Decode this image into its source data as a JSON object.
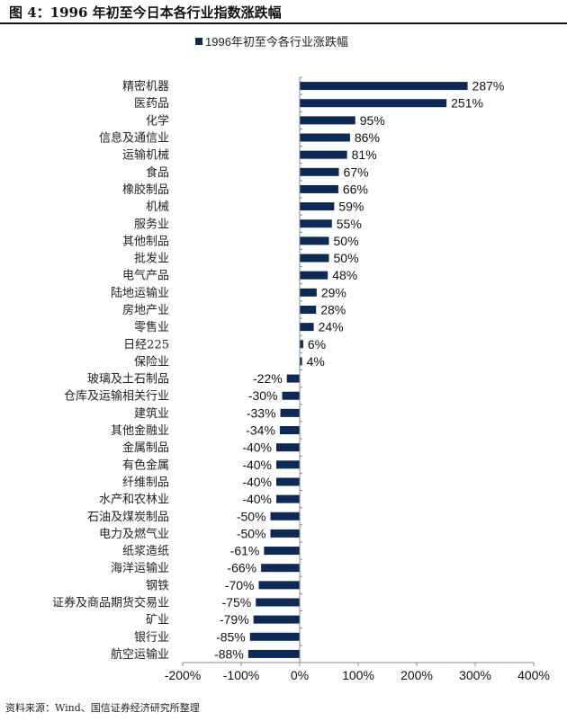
{
  "figure_title": "图 4：1996 年初至今日本各行业指数涨跌幅",
  "source": "资料来源：Wind、国信证券经济研究所整理",
  "colors": {
    "bar": "#0d2a57"
  },
  "chart_data": {
    "type": "bar",
    "orientation": "horizontal",
    "title": "",
    "legend": [
      {
        "name": "1996年初至今各行业涨跌幅",
        "position": "top"
      }
    ],
    "categories": [
      "精密机器",
      "医药品",
      "化学",
      "信息及通信业",
      "运输机械",
      "食品",
      "橡胶制品",
      "机械",
      "服务业",
      "其他制品",
      "批发业",
      "电气产品",
      "陆地运输业",
      "房地产业",
      "零售业",
      "日经225",
      "保险业",
      "玻璃及土石制品",
      "仓库及运输相关行业",
      "建筑业",
      "其他金融业",
      "金属制品",
      "有色金属",
      "纤维制品",
      "水产和农林业",
      "石油及煤炭制品",
      "电力及燃气业",
      "纸浆造纸",
      "海洋运输业",
      "钢铁",
      "证券及商品期货交易业",
      "矿业",
      "银行业",
      "航空运输业"
    ],
    "series": [
      {
        "name": "1996年初至今各行业涨跌幅",
        "values": [
          287,
          251,
          95,
          86,
          81,
          67,
          66,
          59,
          55,
          50,
          50,
          48,
          29,
          28,
          24,
          6,
          4,
          -22,
          -30,
          -33,
          -34,
          -40,
          -40,
          -40,
          -40,
          -50,
          -50,
          -61,
          -66,
          -70,
          -75,
          -79,
          -85,
          -88
        ]
      }
    ],
    "data_labels": [
      "287%",
      "251%",
      "95%",
      "86%",
      "81%",
      "67%",
      "66%",
      "59%",
      "55%",
      "50%",
      "50%",
      "48%",
      "29%",
      "28%",
      "24%",
      "6%",
      "4%",
      "-22%",
      "-30%",
      "-33%",
      "-34%",
      "-40%",
      "-40%",
      "-40%",
      "-40%",
      "-50%",
      "-50%",
      "-61%",
      "-66%",
      "-70%",
      "-75%",
      "-79%",
      "-85%",
      "-88%"
    ],
    "xlim": [
      -200,
      400
    ],
    "xticks": [
      -200,
      -100,
      0,
      100,
      200,
      300,
      400
    ],
    "xtick_labels": [
      "-200%",
      "-100%",
      "0%",
      "100%",
      "200%",
      "300%",
      "400%"
    ],
    "xlabel": "",
    "ylabel": "",
    "grid": false
  }
}
